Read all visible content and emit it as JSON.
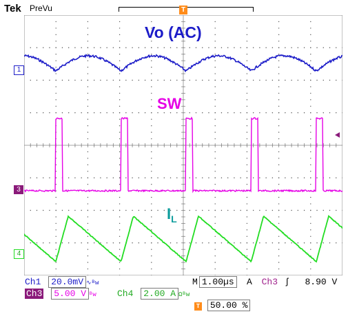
{
  "header": {
    "brand": "Tek",
    "mode": "PreVu"
  },
  "trigger_marker": "T",
  "annotations": {
    "vo": "Vo (AC)",
    "sw": "SW",
    "il_main": "I",
    "il_sub": "L"
  },
  "channel_markers": {
    "ch1": "1",
    "ch3": "3",
    "ch4": "4"
  },
  "status": {
    "ch1_label": "Ch1",
    "ch1_value": "20.0mV",
    "ch3_label": "Ch3",
    "ch3_value": "5.00 V",
    "ch4_label": "Ch4",
    "ch4_value": "2.00 A",
    "timebase_label": "M",
    "timebase_value": "1.00µs",
    "acq_label": "A",
    "trig_source": "Ch3",
    "trig_level": "8.90 V",
    "trig_position": "50.00 %"
  },
  "colors": {
    "ch1": "#1c1cc8",
    "ch3": "#e600e6",
    "ch4": "#22dd22",
    "il_label": "#0c9c9c",
    "trig_marker": "#ff8c1a",
    "ch3_badge": "#8a1a7a"
  }
}
